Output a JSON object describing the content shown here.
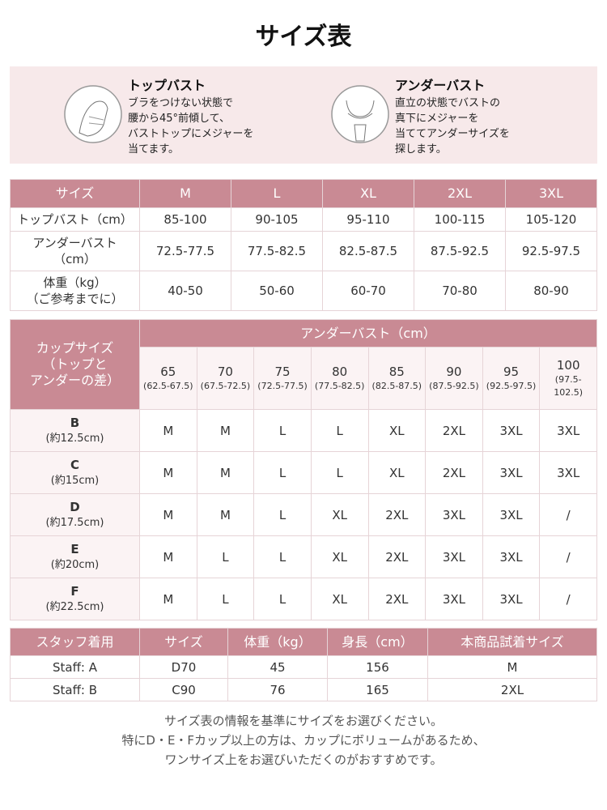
{
  "header": {
    "title": "サイズ表"
  },
  "measure": [
    {
      "heading": "トップバスト",
      "text": "ブラをつけない状態で\n腰から45°前傾して、\nバストトップにメジャーを\n当てます。"
    },
    {
      "heading": "アンダーバスト",
      "text": "直立の状態でバストの\n真下にメジャーを\n当ててアンダーサイズを\n探します。"
    }
  ],
  "size_table": {
    "header": [
      "サイズ",
      "M",
      "L",
      "XL",
      "2XL",
      "3XL"
    ],
    "rows": [
      [
        "トップバスト（cm）",
        "85-100",
        "90-105",
        "95-110",
        "100-115",
        "105-120"
      ],
      [
        "アンダーバスト\n（cm）",
        "72.5-77.5",
        "77.5-82.5",
        "82.5-87.5",
        "87.5-92.5",
        "92.5-97.5"
      ],
      [
        "体重（kg）\n（ご参考までに）",
        "40-50",
        "50-60",
        "60-70",
        "70-80",
        "80-90"
      ]
    ]
  },
  "cup_table": {
    "corner": "カップサイズ\n（トップと\nアンダーの差）",
    "group": "アンダーバスト（cm）",
    "columns": [
      {
        "size": "65",
        "range": "(62.5-67.5)"
      },
      {
        "size": "70",
        "range": "(67.5-72.5)"
      },
      {
        "size": "75",
        "range": "(72.5-77.5)"
      },
      {
        "size": "80",
        "range": "(77.5-82.5)"
      },
      {
        "size": "85",
        "range": "(82.5-87.5)"
      },
      {
        "size": "90",
        "range": "(87.5-92.5)"
      },
      {
        "size": "95",
        "range": "(92.5-97.5)"
      },
      {
        "size": "100",
        "range": "(97.5-\n102.5)"
      }
    ],
    "rows": [
      {
        "cup": "B",
        "diff": "(約12.5cm)",
        "sizes": [
          "M",
          "M",
          "L",
          "L",
          "XL",
          "2XL",
          "3XL",
          "3XL"
        ]
      },
      {
        "cup": "C",
        "diff": "(約15cm)",
        "sizes": [
          "M",
          "M",
          "L",
          "L",
          "XL",
          "2XL",
          "3XL",
          "3XL"
        ]
      },
      {
        "cup": "D",
        "diff": "(約17.5cm)",
        "sizes": [
          "M",
          "M",
          "L",
          "XL",
          "2XL",
          "3XL",
          "3XL",
          "/"
        ]
      },
      {
        "cup": "E",
        "diff": "(約20cm)",
        "sizes": [
          "M",
          "L",
          "L",
          "XL",
          "2XL",
          "3XL",
          "3XL",
          "/"
        ]
      },
      {
        "cup": "F",
        "diff": "(約22.5cm)",
        "sizes": [
          "M",
          "L",
          "L",
          "XL",
          "2XL",
          "3XL",
          "3XL",
          "/"
        ]
      }
    ]
  },
  "staff_table": {
    "header": [
      "スタッフ着用",
      "サイズ",
      "体重（kg）",
      "身長（cm）",
      "本商品試着サイズ"
    ],
    "rows": [
      [
        "Staff: A",
        "D70",
        "45",
        "156",
        "M"
      ],
      [
        "Staff: B",
        "C90",
        "76",
        "165",
        "2XL"
      ]
    ]
  },
  "notes": [
    "サイズ表の情報を基準にサイズをお選びください。",
    "特にD・E・Fカップ以上の方は、カップにボリュームがあるため、",
    "ワンサイズ上をお選びいただくのがおすすめです。"
  ]
}
